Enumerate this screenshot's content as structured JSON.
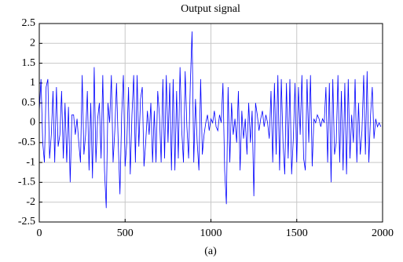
{
  "chart_data": {
    "type": "line",
    "title": "Output signal",
    "caption": "(a)",
    "color": "#0000ff",
    "grid": true,
    "xlim": [
      0,
      2000
    ],
    "xticks": [
      0,
      500,
      1000,
      1500,
      2000
    ],
    "ylim": [
      -2.5,
      2.5
    ],
    "yticks": [
      -2.5,
      -2,
      -1.5,
      -1,
      -0.5,
      0,
      0.5,
      1,
      1.5,
      2,
      2.5
    ],
    "x": [
      0,
      10,
      20,
      30,
      40,
      50,
      60,
      70,
      80,
      90,
      100,
      110,
      120,
      130,
      140,
      150,
      160,
      170,
      180,
      190,
      200,
      210,
      220,
      230,
      240,
      250,
      260,
      270,
      280,
      290,
      300,
      310,
      320,
      330,
      340,
      350,
      360,
      370,
      380,
      390,
      400,
      410,
      420,
      430,
      440,
      450,
      460,
      470,
      480,
      490,
      500,
      510,
      520,
      530,
      540,
      550,
      560,
      570,
      580,
      590,
      600,
      610,
      620,
      630,
      640,
      650,
      660,
      670,
      680,
      690,
      700,
      710,
      720,
      730,
      740,
      750,
      760,
      770,
      780,
      790,
      800,
      810,
      820,
      830,
      840,
      850,
      860,
      870,
      880,
      890,
      900,
      910,
      920,
      930,
      940,
      950,
      960,
      970,
      980,
      990,
      1000,
      1010,
      1020,
      1030,
      1040,
      1050,
      1060,
      1070,
      1080,
      1090,
      1100,
      1110,
      1120,
      1130,
      1140,
      1150,
      1160,
      1170,
      1180,
      1190,
      1200,
      1210,
      1220,
      1230,
      1240,
      1250,
      1260,
      1270,
      1280,
      1290,
      1300,
      1310,
      1320,
      1330,
      1340,
      1350,
      1360,
      1370,
      1380,
      1390,
      1400,
      1410,
      1420,
      1430,
      1440,
      1450,
      1460,
      1470,
      1480,
      1490,
      1500,
      1510,
      1520,
      1530,
      1540,
      1550,
      1560,
      1570,
      1580,
      1590,
      1600,
      1610,
      1620,
      1630,
      1640,
      1650,
      1660,
      1670,
      1680,
      1690,
      1700,
      1710,
      1720,
      1730,
      1740,
      1750,
      1760,
      1770,
      1780,
      1790,
      1800,
      1810,
      1820,
      1830,
      1840,
      1850,
      1860,
      1870,
      1880,
      1890,
      1900,
      1910,
      1920,
      1930,
      1940,
      1950,
      1960,
      1970,
      1980,
      1990
    ],
    "values": [
      0.3,
      1.1,
      -0.5,
      -1.0,
      0.9,
      1.1,
      -0.9,
      -0.3,
      0.8,
      -1.0,
      0.9,
      -0.6,
      -0.3,
      0.8,
      -0.9,
      0.5,
      -1.0,
      0.4,
      -1.5,
      0.2,
      0.2,
      -0.3,
      0.1,
      -0.5,
      -1.0,
      1.2,
      -0.8,
      -0.3,
      0.8,
      -1.2,
      0.5,
      -1.4,
      1.4,
      -1.0,
      0.1,
      0.5,
      -0.9,
      1.2,
      -1.2,
      -2.15,
      0.5,
      0.0,
      1.2,
      -1.0,
      -0.2,
      1.0,
      -0.5,
      -1.8,
      0.2,
      1.2,
      -1.1,
      -0.5,
      0.9,
      -1.3,
      0.2,
      1.2,
      -1.0,
      1.2,
      -0.6,
      0.6,
      0.9,
      -1.1,
      -0.5,
      0.3,
      -0.3,
      0.5,
      -1.0,
      0.3,
      -1.0,
      0.8,
      0.2,
      -1.0,
      1.1,
      -0.9,
      1.2,
      -0.5,
      1.0,
      -1.2,
      1.1,
      -1.2,
      0.8,
      -0.9,
      1.4,
      -0.2,
      -1.0,
      1.3,
      -0.1,
      -0.9,
      1.0,
      2.3,
      -1.0,
      0.6,
      -0.5,
      -1.2,
      1.1,
      -0.8,
      -0.3,
      0.0,
      0.2,
      -0.2,
      0.1,
      0.0,
      0.3,
      -0.1,
      -0.2,
      0.2,
      0.0,
      1.0,
      -1.2,
      -2.05,
      0.9,
      -1.0,
      0.5,
      -0.3,
      0.1,
      -0.5,
      0.8,
      -1.2,
      0.3,
      -0.4,
      0.1,
      -0.8,
      0.5,
      -0.5,
      0.3,
      -1.85,
      0.5,
      0.2,
      -0.2,
      0.1,
      0.3,
      -0.1,
      0.2,
      0.0,
      -0.4,
      0.8,
      -1.0,
      1.0,
      -0.8,
      1.2,
      -1.2,
      1.1,
      -0.5,
      -1.3,
      1.0,
      -0.9,
      1.1,
      -1.3,
      -0.4,
      1.0,
      -1.0,
      0.9,
      -0.3,
      1.2,
      -0.9,
      -1.2,
      1.1,
      -0.5,
      1.2,
      -1.1,
      0.1,
      0.0,
      0.2,
      0.1,
      -0.1,
      0.1,
      0.0,
      0.9,
      -1.0,
      1.0,
      -1.5,
      1.1,
      -0.8,
      -0.5,
      1.2,
      -1.0,
      0.8,
      -1.2,
      1.0,
      -1.3,
      1.1,
      -0.9,
      0.2,
      -0.5,
      1.1,
      -1.0,
      0.5,
      -0.8,
      -0.2,
      1.2,
      -0.8,
      1.3,
      -1.0,
      0.2,
      0.9,
      -0.4,
      0.1,
      -0.1,
      0.0,
      -0.1
    ]
  }
}
